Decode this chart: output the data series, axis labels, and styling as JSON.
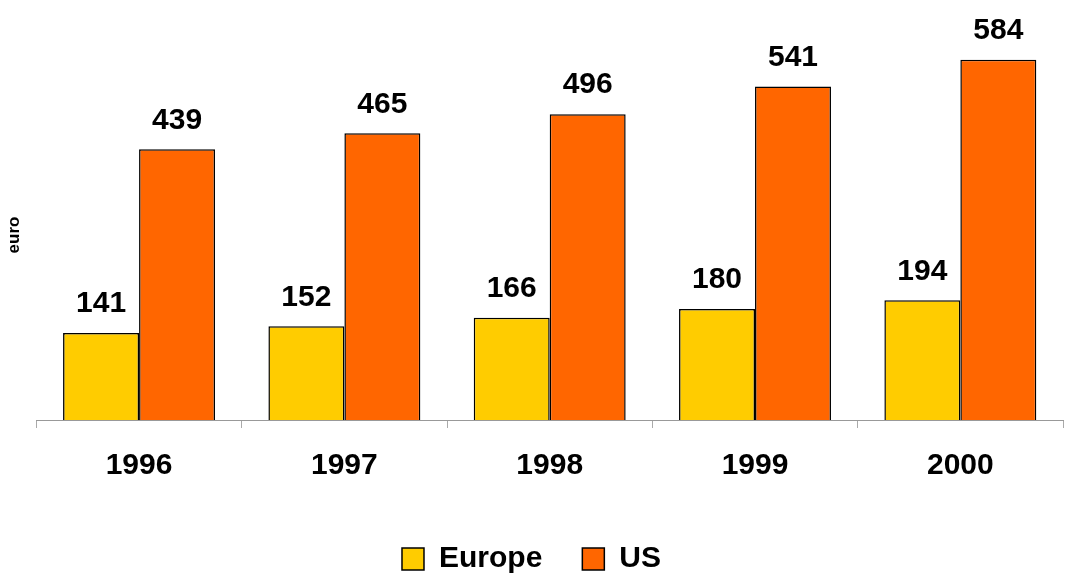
{
  "chart_data": {
    "type": "bar",
    "ylabel": "euro",
    "categories": [
      "1996",
      "1997",
      "1998",
      "1999",
      "2000"
    ],
    "series": [
      {
        "name": "Europe",
        "color": "#ffcc00",
        "values": [
          141,
          152,
          166,
          180,
          194
        ]
      },
      {
        "name": "US",
        "color": "#ff6600",
        "values": [
          439,
          465,
          496,
          541,
          584
        ]
      }
    ],
    "tick_labels": "x",
    "data_labels": true,
    "grid": false,
    "legend": "bottom"
  }
}
